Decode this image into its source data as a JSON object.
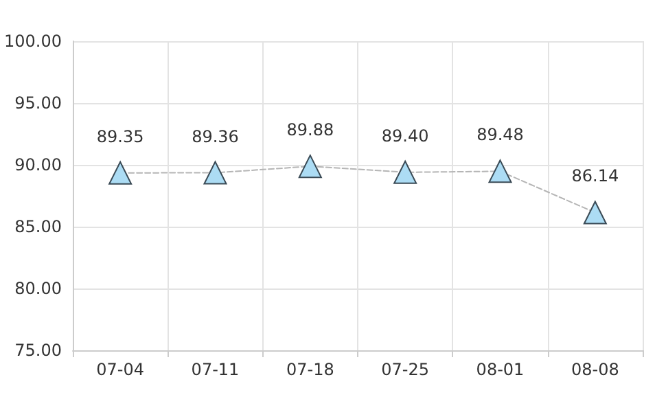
{
  "chart_data": {
    "type": "line",
    "categories": [
      "07-04",
      "07-11",
      "07-18",
      "07-25",
      "08-01",
      "08-08"
    ],
    "series": [
      {
        "color": "#acdcf4",
        "values": [
          89.35,
          89.36,
          89.88,
          89.4,
          89.48,
          86.14
        ],
        "value_labels": [
          "89.35",
          "89.36",
          "89.88",
          "89.40",
          "89.48",
          "86.14"
        ]
      }
    ],
    "ylim": [
      75,
      100
    ],
    "yticks": [
      {
        "value": 75,
        "label": "75.00"
      },
      {
        "value": 80,
        "label": "80.00"
      },
      {
        "value": 85,
        "label": "85.00"
      },
      {
        "value": 90,
        "label": "90.00"
      },
      {
        "value": 95,
        "label": "95.00"
      },
      {
        "value": 100,
        "label": "100.00"
      }
    ],
    "grid": true,
    "marker": "triangle",
    "line_style": "dashed"
  }
}
